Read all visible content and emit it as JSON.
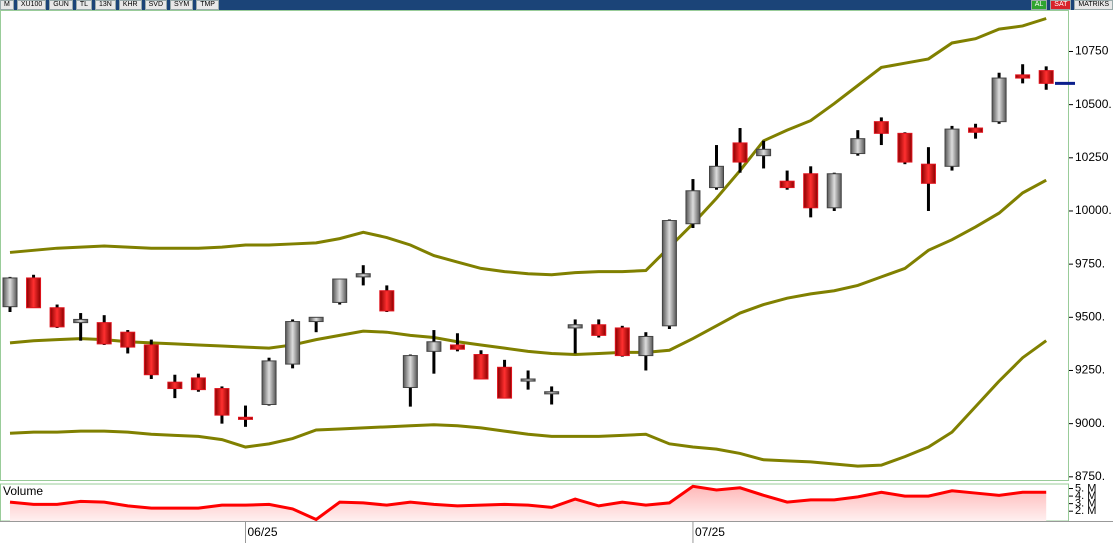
{
  "toolbar": {
    "left": [
      "M",
      "XU100",
      "GUN",
      "TL",
      "13N",
      "KHR",
      "SVD",
      "SYM",
      "TMP"
    ],
    "right": [
      "AL",
      "SAT",
      "MATRIKS"
    ]
  },
  "chart_data": [
    {
      "type": "candlestick",
      "categories": [
        null,
        null,
        null,
        null,
        null,
        null,
        null,
        null,
        null,
        null,
        "06/25",
        null,
        null,
        null,
        null,
        null,
        null,
        null,
        null,
        null,
        null,
        null,
        null,
        null,
        null,
        null,
        null,
        null,
        null,
        "07/25",
        null,
        null,
        null,
        null,
        null,
        null,
        null,
        null,
        null,
        null,
        null,
        null,
        null,
        null,
        null
      ],
      "open": [
        9550,
        9685,
        9545,
        9475,
        9475,
        9430,
        9370,
        9195,
        9215,
        9165,
        9030,
        9090,
        9280,
        9480,
        9570,
        9690,
        9625,
        9170,
        9340,
        9370,
        9325,
        9265,
        9200,
        9140,
        9450,
        9465,
        9450,
        9320,
        9460,
        9940,
        10110,
        10320,
        10260,
        10140,
        10175,
        10015,
        10270,
        10420,
        10365,
        10220,
        10210,
        10390,
        10420,
        10640,
        10660
      ],
      "high": [
        9690,
        9700,
        9560,
        9520,
        9510,
        9440,
        9395,
        9230,
        9235,
        9175,
        9085,
        9310,
        9490,
        9500,
        9675,
        9745,
        9650,
        9325,
        9440,
        9425,
        9345,
        9300,
        9250,
        9175,
        9490,
        9490,
        9460,
        9430,
        9960,
        10150,
        10310,
        10390,
        10330,
        10190,
        10210,
        10180,
        10380,
        10440,
        10370,
        10300,
        10400,
        10410,
        10650,
        10690,
        10680
      ],
      "low": [
        9525,
        9545,
        9450,
        9390,
        9370,
        9330,
        9210,
        9120,
        9150,
        9000,
        8985,
        9085,
        9260,
        9430,
        9560,
        9650,
        9525,
        9080,
        9235,
        9340,
        9215,
        9125,
        9160,
        9090,
        9330,
        9405,
        9315,
        9250,
        9445,
        9920,
        10100,
        10180,
        10200,
        10100,
        9970,
        10000,
        10260,
        10310,
        10220,
        10000,
        10190,
        10340,
        10410,
        10600,
        10570
      ],
      "close": [
        9685,
        9545,
        9455,
        9490,
        9375,
        9360,
        9230,
        9165,
        9160,
        9040,
        9020,
        9295,
        9480,
        9500,
        9680,
        9705,
        9530,
        9320,
        9385,
        9350,
        9210,
        9120,
        9210,
        9150,
        9465,
        9415,
        9320,
        9410,
        9955,
        10095,
        10210,
        10230,
        10290,
        10110,
        10015,
        10175,
        10340,
        10365,
        10230,
        10130,
        10385,
        10370,
        10625,
        10625,
        10600
      ],
      "up_color": "#8a8a8a",
      "down_color": "#e0141e",
      "last_price_color": "#0b1f8c",
      "bands": [
        {
          "color": "#808000",
          "values": [
            9805,
            9815,
            9825,
            9830,
            9835,
            9830,
            9825,
            9825,
            9825,
            9830,
            9840,
            9840,
            9845,
            9850,
            9870,
            9900,
            9875,
            9840,
            9790,
            9760,
            9730,
            9715,
            9705,
            9700,
            9710,
            9715,
            9715,
            9720,
            9830,
            9940,
            10060,
            10190,
            10330,
            10380,
            10425,
            10505,
            10590,
            10675,
            10695,
            10715,
            10790,
            10810,
            10855,
            10870,
            10905
          ]
        },
        {
          "color": "#808000",
          "values": [
            9380,
            9390,
            9395,
            9400,
            9395,
            9385,
            9380,
            9375,
            9370,
            9365,
            9360,
            9355,
            9370,
            9395,
            9415,
            9435,
            9430,
            9415,
            9405,
            9385,
            9370,
            9355,
            9340,
            9330,
            9325,
            9330,
            9335,
            9335,
            9345,
            9400,
            9460,
            9520,
            9560,
            9590,
            9610,
            9625,
            9650,
            9690,
            9730,
            9815,
            9865,
            9925,
            9990,
            10085,
            10145
          ]
        },
        {
          "color": "#808000",
          "values": [
            8955,
            8960,
            8960,
            8965,
            8965,
            8960,
            8950,
            8945,
            8940,
            8925,
            8890,
            8905,
            8930,
            8970,
            8975,
            8980,
            8985,
            8990,
            8995,
            8990,
            8980,
            8965,
            8950,
            8940,
            8940,
            8940,
            8945,
            8950,
            8905,
            8890,
            8880,
            8860,
            8830,
            8825,
            8820,
            8810,
            8800,
            8805,
            8845,
            8890,
            8960,
            9080,
            9200,
            9310,
            9390
          ]
        }
      ],
      "ylim": [
        8735,
        10945
      ],
      "yticks": [
        {
          "value": 8750,
          "label": "8750."
        },
        {
          "value": 9000,
          "label": "9000."
        },
        {
          "value": 9250,
          "label": "9250."
        },
        {
          "value": 9500,
          "label": "9500."
        },
        {
          "value": 9750,
          "label": "9750."
        },
        {
          "value": 10000,
          "label": "10000."
        },
        {
          "value": 10250,
          "label": "10250"
        },
        {
          "value": 10500,
          "label": "10500."
        },
        {
          "value": 10750,
          "label": "10750"
        }
      ]
    },
    {
      "type": "area",
      "title": "Volume",
      "color": "#ff0000",
      "values": [
        3.2,
        2.9,
        2.9,
        3.3,
        3.2,
        2.7,
        2.4,
        2.4,
        2.4,
        2.8,
        2.8,
        2.9,
        2.3,
        0.9,
        3.2,
        3.1,
        2.8,
        3.2,
        2.9,
        2.7,
        2.8,
        2.9,
        2.8,
        2.5,
        3.6,
        2.7,
        3.2,
        2.8,
        3.1,
        5.3,
        4.8,
        5.1,
        4.1,
        3.2,
        3.5,
        3.5,
        3.9,
        4.5,
        4.0,
        4.0,
        4.7,
        4.4,
        4.1,
        4.5,
        4.5
      ],
      "ylim": [
        0.7,
        5.6
      ],
      "yticks": [
        {
          "value": 2,
          "label": "2. M"
        },
        {
          "value": 3,
          "label": "3. M"
        },
        {
          "value": 4,
          "label": "4. M"
        },
        {
          "value": 5,
          "label": "5. M"
        }
      ]
    }
  ]
}
